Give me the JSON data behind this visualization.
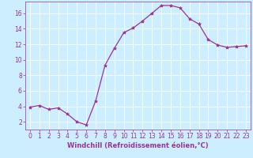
{
  "x": [
    0,
    1,
    2,
    3,
    4,
    5,
    6,
    7,
    8,
    9,
    10,
    11,
    12,
    13,
    14,
    15,
    16,
    17,
    18,
    19,
    20,
    21,
    22,
    23
  ],
  "y": [
    3.9,
    4.1,
    3.6,
    3.8,
    3.0,
    2.0,
    1.6,
    4.7,
    9.3,
    11.5,
    13.5,
    14.1,
    15.0,
    16.0,
    17.0,
    17.0,
    16.7,
    15.3,
    14.6,
    12.6,
    11.9,
    11.6,
    11.7,
    11.8
  ],
  "line_color": "#993399",
  "marker": "*",
  "markersize": 3,
  "linewidth": 0.9,
  "xlabel": "Windchill (Refroidissement éolien,°C)",
  "xlabel_fontsize": 6.0,
  "ylabel_ticks": [
    2,
    4,
    6,
    8,
    10,
    12,
    14,
    16
  ],
  "xticks": [
    0,
    1,
    2,
    3,
    4,
    5,
    6,
    7,
    8,
    9,
    10,
    11,
    12,
    13,
    14,
    15,
    16,
    17,
    18,
    19,
    20,
    21,
    22,
    23
  ],
  "xlim": [
    -0.5,
    23.5
  ],
  "ylim": [
    1.0,
    17.5
  ],
  "bg_color": "#cceeff",
  "grid_color": "#ffffff",
  "tick_color": "#993399",
  "tick_fontsize": 5.5
}
